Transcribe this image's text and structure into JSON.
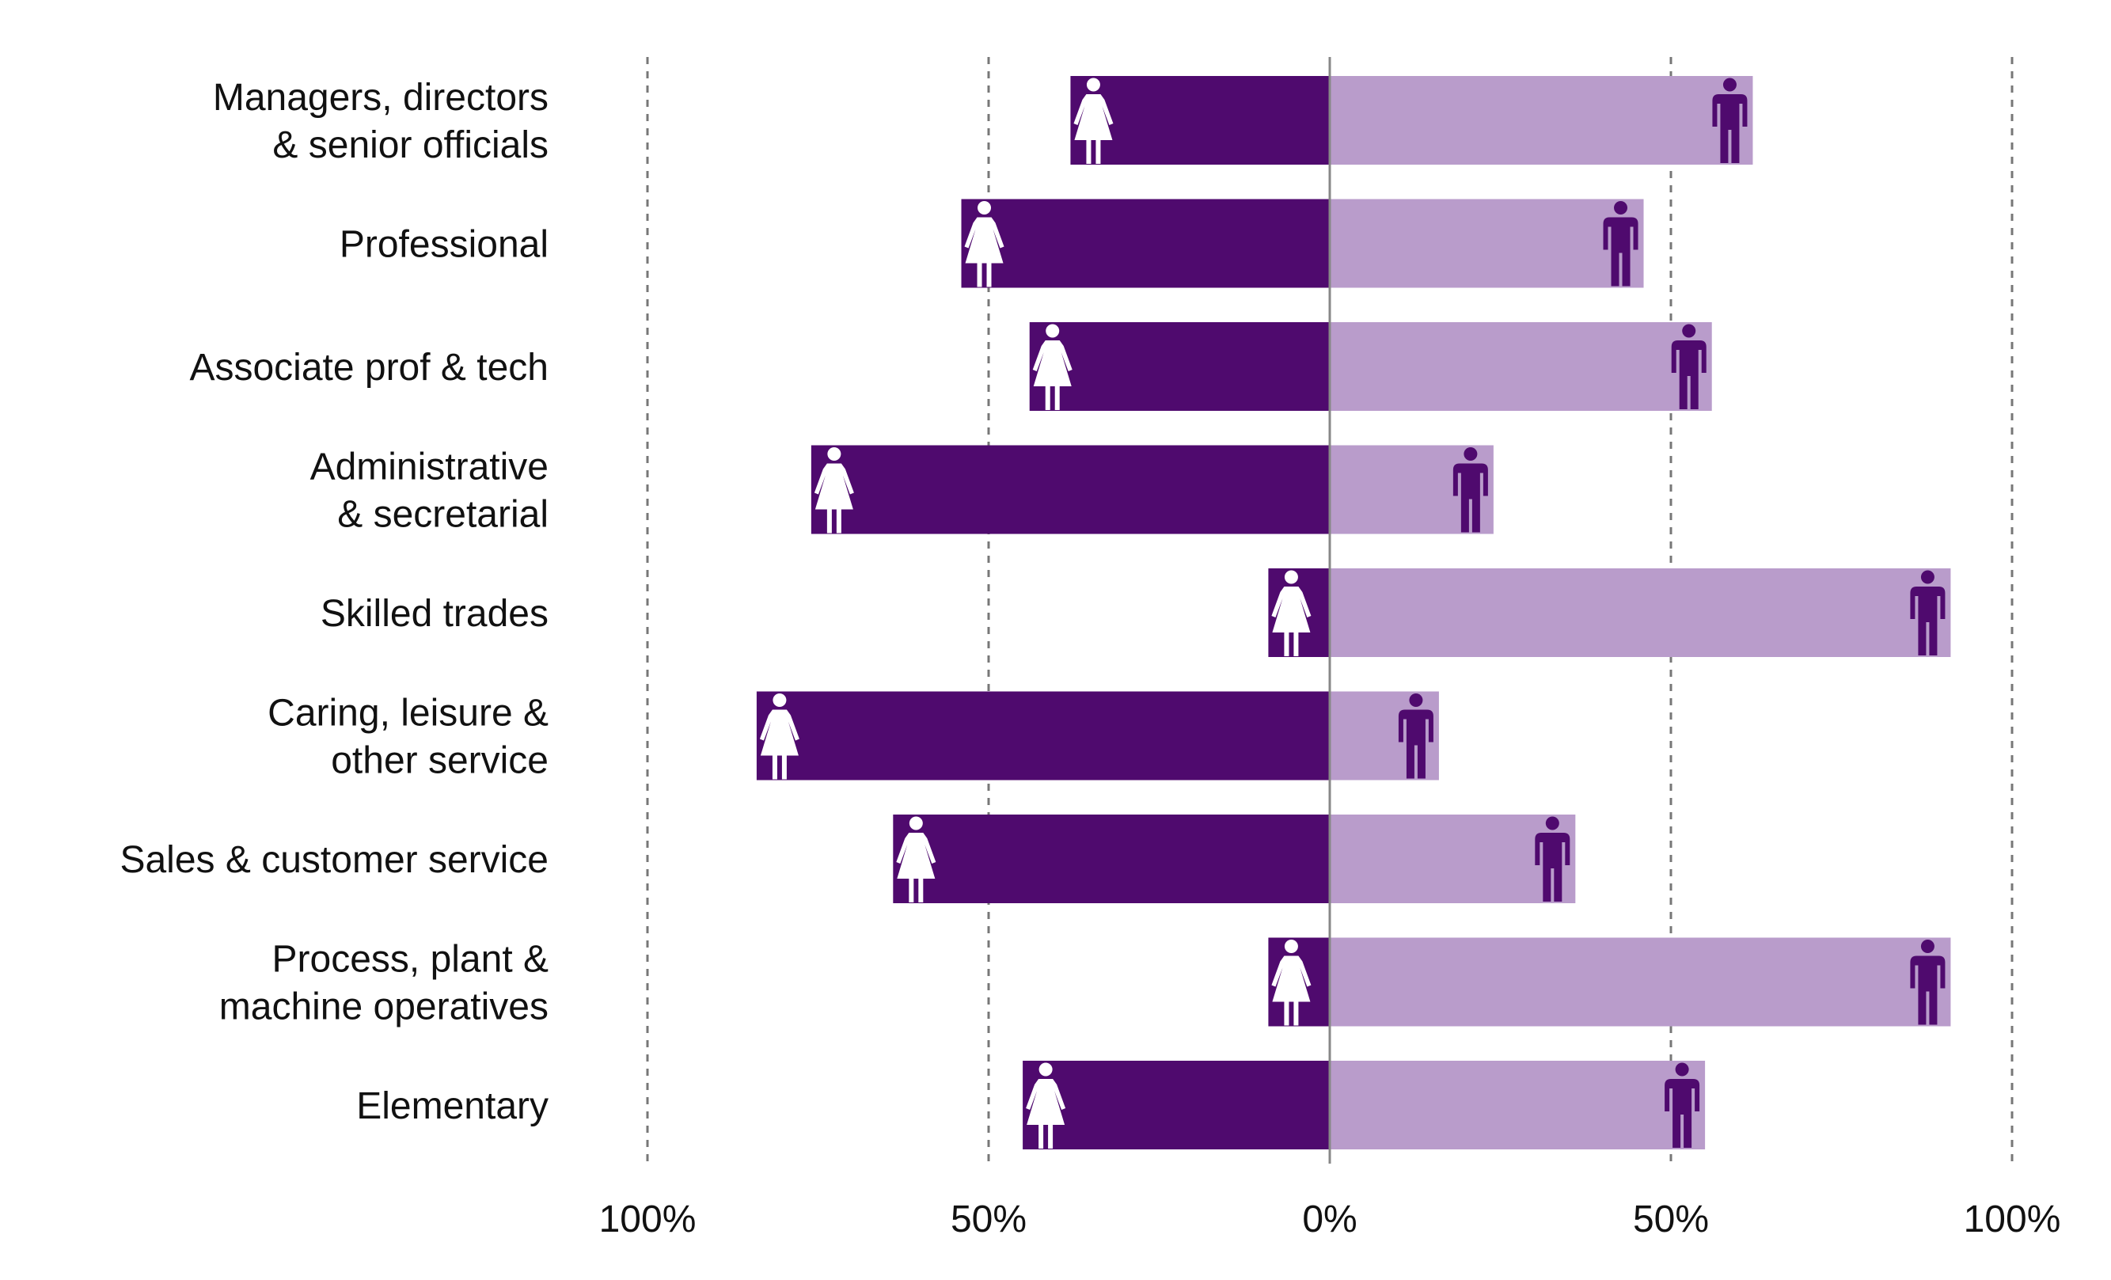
{
  "chart_data": {
    "type": "bar",
    "orientation": "horizontal-diverging",
    "title": "",
    "xlabel": "",
    "ylabel": "",
    "xlim": [
      -100,
      100
    ],
    "x_tick_values": [
      -100,
      -50,
      0,
      50,
      100
    ],
    "x_tick_labels": [
      "100%",
      "50%",
      "0%",
      "50%",
      "100%"
    ],
    "grid": true,
    "categories": [
      [
        "Managers, directors",
        "& senior officials"
      ],
      [
        "Professional"
      ],
      [
        "Associate prof & tech"
      ],
      [
        "Administrative",
        "& secretarial"
      ],
      [
        "Skilled trades"
      ],
      [
        "Caring, leisure &",
        "other service"
      ],
      [
        "Sales & customer service"
      ],
      [
        "Process, plant &",
        "machine operatives"
      ],
      [
        "Elementary"
      ]
    ],
    "series": [
      {
        "name": "women",
        "direction": "left",
        "icon": "woman-icon",
        "color": "#4f0a6e",
        "icon_color": "#ffffff",
        "values": [
          38,
          54,
          44,
          76,
          9,
          84,
          64,
          9,
          45
        ]
      },
      {
        "name": "men",
        "direction": "right",
        "icon": "man-icon",
        "color": "#b99ccb",
        "icon_color": "#4f0a6e",
        "values": [
          62,
          46,
          56,
          24,
          91,
          16,
          36,
          91,
          55
        ]
      }
    ],
    "colors": {
      "grid": "#777777",
      "axis": "#888888",
      "text": "#111111"
    }
  }
}
